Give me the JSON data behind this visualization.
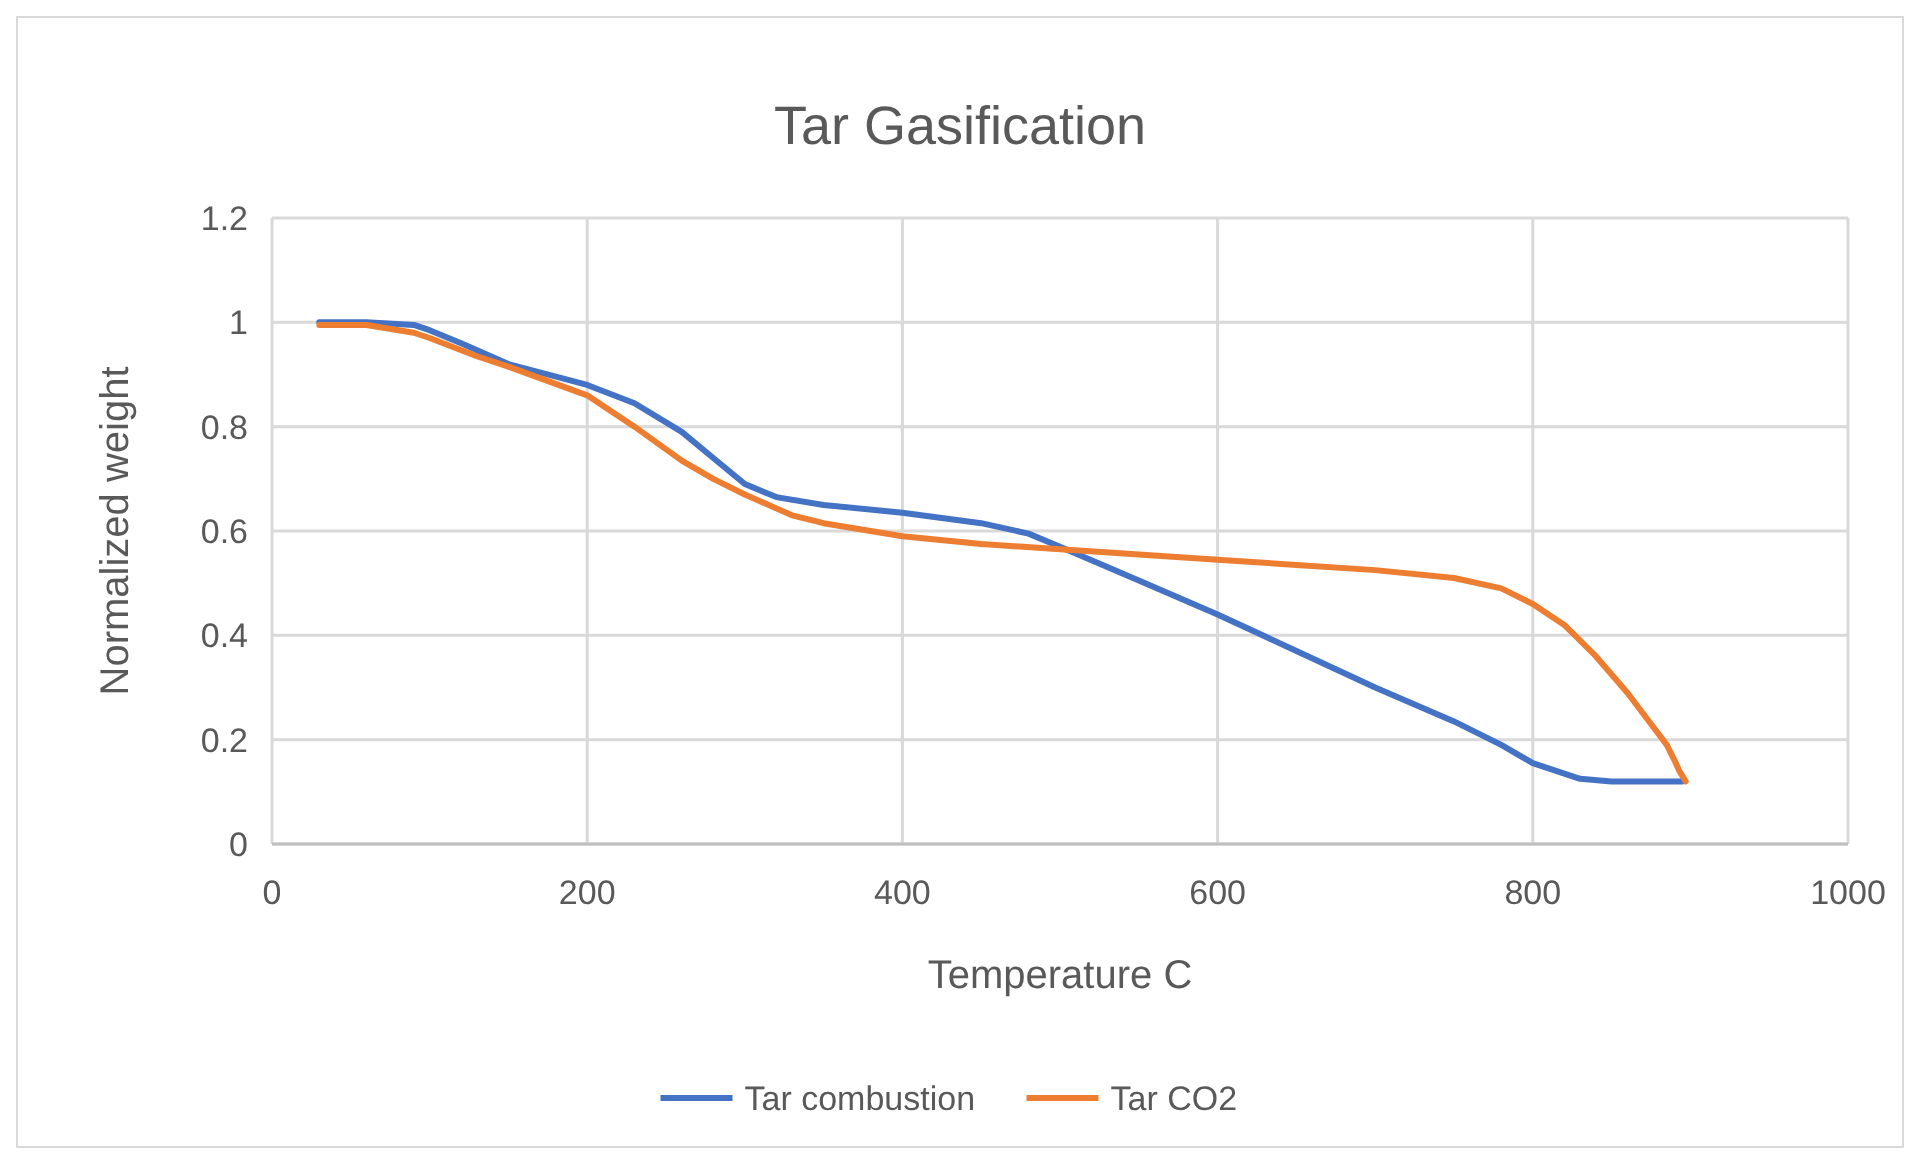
{
  "chart_data": {
    "type": "line",
    "title": "Tar Gasification",
    "xlabel": "Temperature C",
    "ylabel": "Normalized weight",
    "xlim": [
      0,
      1000
    ],
    "xticks": [
      0,
      200,
      400,
      600,
      800,
      1000
    ],
    "ylim": [
      0,
      1.2
    ],
    "yticks": [
      0,
      0.2,
      0.4,
      0.6,
      0.8,
      1,
      1.2
    ],
    "grid": true,
    "legend": "bottom",
    "line_style": "solid",
    "marker": "none",
    "series": [
      {
        "name": "Tar combustion",
        "color": "#4472c4",
        "x": [
          30,
          60,
          90,
          100,
          120,
          150,
          200,
          230,
          260,
          280,
          300,
          320,
          350,
          400,
          450,
          480,
          500,
          550,
          600,
          650,
          700,
          750,
          780,
          800,
          820,
          830,
          850,
          880,
          895
        ],
        "values": [
          1,
          1,
          0.995,
          0.985,
          0.96,
          0.92,
          0.88,
          0.845,
          0.79,
          0.74,
          0.69,
          0.665,
          0.65,
          0.635,
          0.615,
          0.595,
          0.57,
          0.505,
          0.44,
          0.37,
          0.3,
          0.235,
          0.19,
          0.155,
          0.135,
          0.125,
          0.12,
          0.12,
          0.12
        ]
      },
      {
        "name": "Tar CO2",
        "color": "#ed7d31",
        "x": [
          30,
          60,
          90,
          100,
          130,
          150,
          200,
          230,
          260,
          280,
          300,
          330,
          350,
          400,
          450,
          500,
          550,
          600,
          650,
          700,
          750,
          780,
          800,
          820,
          840,
          860,
          875,
          885,
          890,
          893,
          897
        ],
        "values": [
          0.995,
          0.995,
          0.98,
          0.97,
          0.935,
          0.915,
          0.86,
          0.8,
          0.735,
          0.7,
          0.67,
          0.63,
          0.615,
          0.59,
          0.575,
          0.565,
          0.555,
          0.545,
          0.535,
          0.525,
          0.51,
          0.49,
          0.46,
          0.42,
          0.36,
          0.29,
          0.23,
          0.19,
          0.16,
          0.14,
          0.12
        ]
      }
    ]
  }
}
